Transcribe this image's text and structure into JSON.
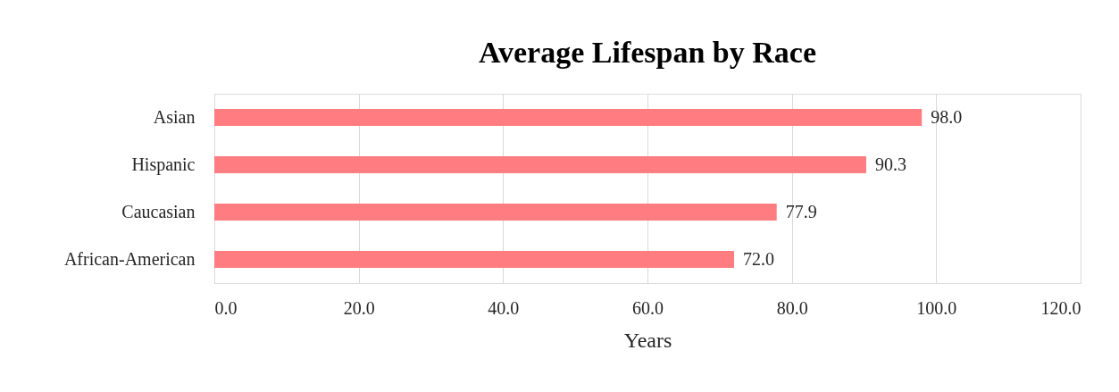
{
  "chart_data": {
    "type": "bar",
    "orientation": "horizontal",
    "title": "Average Lifespan by Race",
    "xlabel": "Years",
    "categories": [
      "Asian",
      "Hispanic",
      "Caucasian",
      "African-American"
    ],
    "values": [
      98.0,
      90.3,
      77.9,
      72.0
    ],
    "value_labels": [
      "98.0",
      "90.3",
      "77.9",
      "72.0"
    ],
    "color": "#ff7c80",
    "xlim": [
      0,
      120
    ],
    "xticks": [
      {
        "value": 0,
        "label": "0.0"
      },
      {
        "value": 20,
        "label": "20.0"
      },
      {
        "value": 40,
        "label": "40.0"
      },
      {
        "value": 60,
        "label": "60.0"
      },
      {
        "value": 80,
        "label": "80.0"
      },
      {
        "value": 100,
        "label": "100.0"
      },
      {
        "value": 120,
        "label": "120.0"
      }
    ],
    "grid": "x"
  }
}
